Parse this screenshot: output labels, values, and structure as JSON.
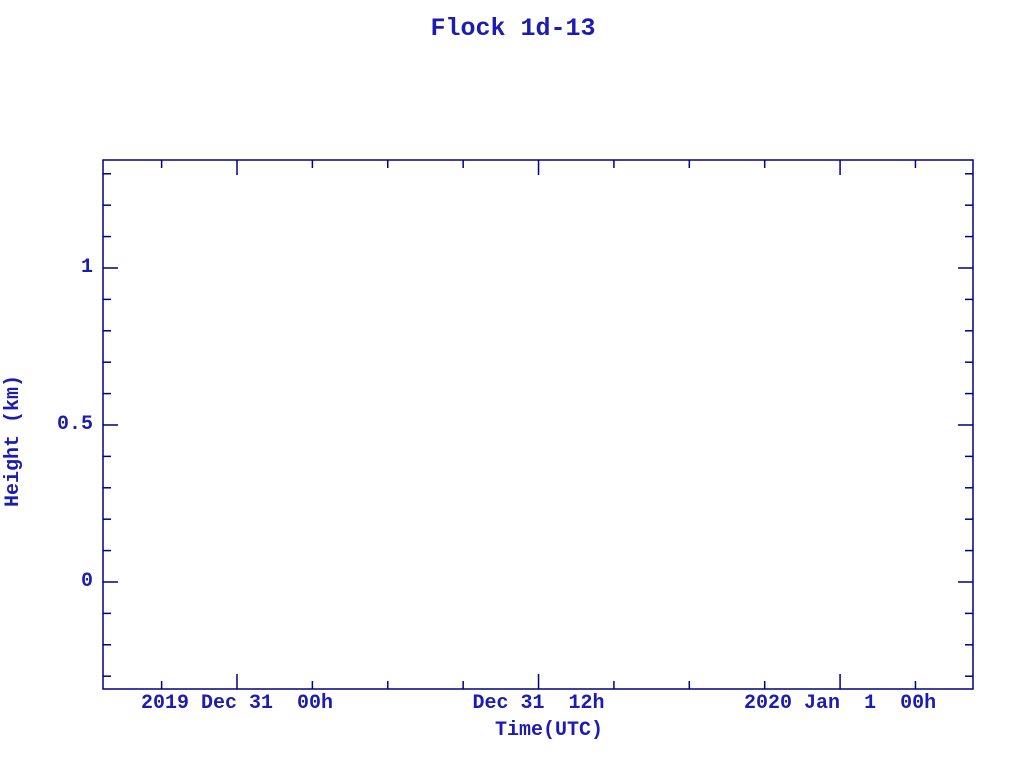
{
  "colors": {
    "background": "#ffffff",
    "axis_line": "#000082",
    "text": "#1c1cb2"
  },
  "chart_data": {
    "type": "line",
    "title": "Flock 1d-13",
    "xlabel": "Time(UTC)",
    "ylabel": "Height (km)",
    "series": [],
    "plot_area_empty": true,
    "legend": "none",
    "grid": false,
    "tick_style": "inward ticks on all four box sides",
    "x_axis": {
      "unit": "hours relative to 2019 Dec 31 00:00 UTC",
      "range": [
        -5.333,
        29.29
      ],
      "minor_tick_step": 3,
      "major_ticks": [
        {
          "value": 0,
          "label": "2019 Dec 31  00h"
        },
        {
          "value": 12,
          "label": "Dec 31  12h"
        },
        {
          "value": 24,
          "label": "2020 Jan  1  00h"
        }
      ]
    },
    "y_axis": {
      "range": [
        -0.3408,
        1.3439
      ],
      "minor_tick_step": 0.1,
      "major_ticks": [
        {
          "value": 0,
          "label": "0"
        },
        {
          "value": 0.5,
          "label": "0.5"
        },
        {
          "value": 1,
          "label": "1"
        }
      ]
    }
  }
}
